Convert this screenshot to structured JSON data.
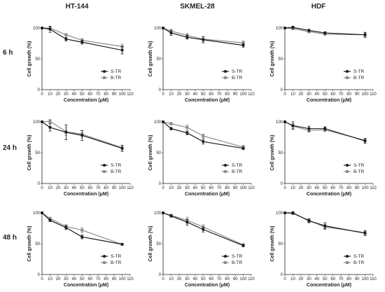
{
  "columns": [
    "HT-144",
    "SKMEL-28",
    "HDF"
  ],
  "rows": [
    "6 h",
    "24 h",
    "48 h"
  ],
  "chart_data": [
    {
      "type": "line",
      "column": "HT-144",
      "row": "6 h",
      "xlabel": "Concentration (μM)",
      "ylabel": "Cell growth (%)",
      "xlim": [
        0,
        110
      ],
      "ylim": [
        0,
        100
      ],
      "xticks": [
        0,
        10,
        20,
        30,
        40,
        50,
        60,
        70,
        80,
        90,
        100,
        110
      ],
      "yticks": [
        0,
        50,
        100
      ],
      "series": [
        {
          "name": "S-TR",
          "color": "#1a1a1a",
          "x": [
            0,
            10,
            30,
            50,
            100
          ],
          "y": [
            100,
            98,
            82,
            77,
            64
          ],
          "err": [
            0,
            5,
            3,
            3,
            6
          ]
        },
        {
          "name": "B-TR",
          "color": "#8c8c8c",
          "x": [
            0,
            10,
            30,
            50,
            100
          ],
          "y": [
            100,
            100,
            89,
            80,
            70
          ],
          "err": [
            0,
            3,
            2,
            3,
            4
          ]
        }
      ]
    },
    {
      "type": "line",
      "column": "SKMEL-28",
      "row": "6 h",
      "xlabel": "Concentration (μM)",
      "ylabel": "Cell growth (%)",
      "xlim": [
        0,
        110
      ],
      "ylim": [
        0,
        100
      ],
      "xticks": [
        0,
        10,
        20,
        30,
        40,
        50,
        60,
        70,
        80,
        90,
        100,
        110
      ],
      "yticks": [
        0,
        50,
        100
      ],
      "series": [
        {
          "name": "S-TR",
          "color": "#1a1a1a",
          "x": [
            0,
            10,
            30,
            50,
            100
          ],
          "y": [
            100,
            92,
            85,
            81,
            72
          ],
          "err": [
            0,
            4,
            3,
            5,
            3
          ]
        },
        {
          "name": "B-TR",
          "color": "#8c8c8c",
          "x": [
            0,
            10,
            30,
            50,
            100
          ],
          "y": [
            100,
            95,
            88,
            82,
            76
          ],
          "err": [
            0,
            3,
            3,
            4,
            3
          ]
        }
      ]
    },
    {
      "type": "line",
      "column": "HDF",
      "row": "6 h",
      "xlabel": "Concentration (μM)",
      "ylabel": "Cell growth (%)",
      "xlim": [
        0,
        110
      ],
      "ylim": [
        0,
        100
      ],
      "xticks": [
        0,
        10,
        20,
        30,
        40,
        50,
        60,
        70,
        80,
        90,
        100,
        110
      ],
      "yticks": [
        0,
        50,
        100
      ],
      "series": [
        {
          "name": "S-TR",
          "color": "#1a1a1a",
          "x": [
            0,
            10,
            30,
            50,
            100
          ],
          "y": [
            100,
            101,
            96,
            92,
            89
          ],
          "err": [
            0,
            2,
            2,
            2,
            4
          ]
        },
        {
          "name": "B-TR",
          "color": "#8c8c8c",
          "x": [
            0,
            10,
            30,
            50,
            100
          ],
          "y": [
            100,
            99,
            94,
            90,
            89
          ],
          "err": [
            0,
            2,
            2,
            2,
            3
          ]
        }
      ]
    },
    {
      "type": "line",
      "column": "HT-144",
      "row": "24 h",
      "xlabel": "Concentration (μM)",
      "ylabel": "Cell growth (%)",
      "xlim": [
        0,
        110
      ],
      "ylim": [
        0,
        100
      ],
      "xticks": [
        0,
        10,
        20,
        30,
        40,
        50,
        60,
        70,
        80,
        90,
        100,
        110
      ],
      "yticks": [
        0,
        50,
        100
      ],
      "series": [
        {
          "name": "S-TR",
          "color": "#1a1a1a",
          "x": [
            0,
            10,
            30,
            50,
            100
          ],
          "y": [
            100,
            91,
            83,
            78,
            57
          ],
          "err": [
            0,
            6,
            12,
            8,
            5
          ]
        },
        {
          "name": "B-TR",
          "color": "#8c8c8c",
          "x": [
            0,
            10,
            30,
            50,
            100
          ],
          "y": [
            100,
            101,
            84,
            80,
            58
          ],
          "err": [
            0,
            3,
            6,
            6,
            4
          ]
        }
      ]
    },
    {
      "type": "line",
      "column": "SKMEL-28",
      "row": "24 h",
      "xlabel": "Concentration (μM)",
      "ylabel": "Cell growth (%)",
      "xlim": [
        0,
        110
      ],
      "ylim": [
        0,
        100
      ],
      "xticks": [
        0,
        10,
        20,
        30,
        40,
        50,
        60,
        70,
        80,
        90,
        100,
        110
      ],
      "yticks": [
        0,
        50,
        100
      ],
      "series": [
        {
          "name": "S-TR",
          "color": "#1a1a1a",
          "x": [
            0,
            10,
            30,
            50,
            100
          ],
          "y": [
            100,
            89,
            82,
            68,
            57
          ],
          "err": [
            0,
            2,
            3,
            4,
            2
          ]
        },
        {
          "name": "B-TR",
          "color": "#8c8c8c",
          "x": [
            0,
            10,
            30,
            50,
            100
          ],
          "y": [
            100,
            97,
            91,
            77,
            59
          ],
          "err": [
            0,
            2,
            4,
            3,
            3
          ]
        }
      ]
    },
    {
      "type": "line",
      "column": "HDF",
      "row": "24 h",
      "xlabel": "Concentration (μM)",
      "ylabel": "Cell growth (%)",
      "xlim": [
        0,
        110
      ],
      "ylim": [
        0,
        100
      ],
      "xticks": [
        0,
        10,
        20,
        30,
        40,
        50,
        60,
        70,
        80,
        90,
        100,
        110
      ],
      "yticks": [
        0,
        50,
        100
      ],
      "series": [
        {
          "name": "S-TR",
          "color": "#1a1a1a",
          "x": [
            0,
            10,
            30,
            50,
            100
          ],
          "y": [
            100,
            94,
            89,
            89,
            69
          ],
          "err": [
            0,
            6,
            4,
            3,
            4
          ]
        },
        {
          "name": "B-TR",
          "color": "#8c8c8c",
          "x": [
            0,
            10,
            30,
            50,
            100
          ],
          "y": [
            100,
            93,
            86,
            87,
            70
          ],
          "err": [
            0,
            4,
            3,
            3,
            3
          ]
        }
      ]
    },
    {
      "type": "line",
      "column": "HT-144",
      "row": "48 h",
      "xlabel": "Concentration (μM)",
      "ylabel": "Cell growth (%)",
      "xlim": [
        0,
        110
      ],
      "ylim": [
        0,
        100
      ],
      "xticks": [
        0,
        10,
        20,
        30,
        40,
        50,
        60,
        70,
        80,
        90,
        100,
        110
      ],
      "yticks": [
        0,
        50,
        100
      ],
      "series": [
        {
          "name": "S-TR",
          "color": "#1a1a1a",
          "x": [
            0,
            10,
            30,
            50,
            100
          ],
          "y": [
            100,
            88,
            76,
            61,
            49
          ],
          "err": [
            0,
            2,
            3,
            3,
            1
          ]
        },
        {
          "name": "B-TR",
          "color": "#8c8c8c",
          "x": [
            0,
            10,
            30,
            50,
            100
          ],
          "y": [
            100,
            91,
            78,
            72,
            49
          ],
          "err": [
            0,
            2,
            3,
            4,
            1
          ]
        }
      ]
    },
    {
      "type": "line",
      "column": "SKMEL-28",
      "row": "48 h",
      "xlabel": "Concentration (μM)",
      "ylabel": "Cell growth (%)",
      "xlim": [
        0,
        110
      ],
      "ylim": [
        0,
        100
      ],
      "xticks": [
        0,
        10,
        20,
        30,
        40,
        50,
        60,
        70,
        80,
        90,
        100,
        110
      ],
      "yticks": [
        0,
        50,
        100
      ],
      "series": [
        {
          "name": "S-TR",
          "color": "#1a1a1a",
          "x": [
            0,
            10,
            30,
            50,
            100
          ],
          "y": [
            100,
            95,
            85,
            73,
            47
          ],
          "err": [
            0,
            2,
            5,
            4,
            2
          ]
        },
        {
          "name": "B-TR",
          "color": "#8c8c8c",
          "x": [
            0,
            10,
            30,
            50,
            100
          ],
          "y": [
            100,
            96,
            88,
            77,
            48
          ],
          "err": [
            0,
            2,
            5,
            4,
            2
          ]
        }
      ]
    },
    {
      "type": "line",
      "column": "HDF",
      "row": "48 h",
      "xlabel": "Concentration (μM)",
      "ylabel": "Cell growth (%)",
      "xlim": [
        0,
        110
      ],
      "ylim": [
        0,
        100
      ],
      "xticks": [
        0,
        10,
        20,
        30,
        40,
        50,
        60,
        70,
        80,
        90,
        100,
        110
      ],
      "yticks": [
        0,
        50,
        100
      ],
      "series": [
        {
          "name": "S-TR",
          "color": "#1a1a1a",
          "x": [
            0,
            10,
            30,
            50,
            100
          ],
          "y": [
            100,
            100,
            87,
            79,
            67
          ],
          "err": [
            0,
            2,
            3,
            5,
            4
          ]
        },
        {
          "name": "B-TR",
          "color": "#8c8c8c",
          "x": [
            0,
            10,
            30,
            50,
            100
          ],
          "y": [
            100,
            99,
            88,
            77,
            68
          ],
          "err": [
            0,
            2,
            3,
            4,
            3
          ]
        }
      ]
    }
  ]
}
